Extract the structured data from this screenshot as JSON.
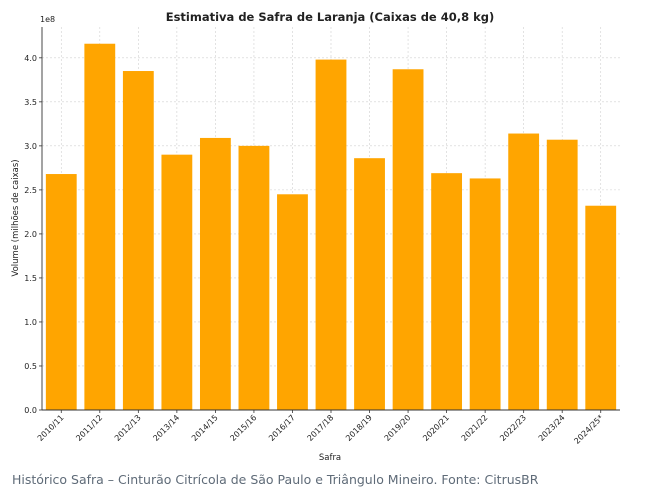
{
  "chart_data": {
    "type": "bar",
    "title": "Estimativa de Safra de Laranja (Caixas de 40,8 kg)",
    "xlabel": "Safra",
    "ylabel": "Volume (milhões de caixas)",
    "y_scale_label": "1e8",
    "categories": [
      "2010/11",
      "2011/12",
      "2012/13",
      "2013/14",
      "2014/15",
      "2015/16",
      "2016/17",
      "2017/18",
      "2018/19",
      "2019/20",
      "2020/21",
      "2021/22",
      "2022/23",
      "2023/24",
      "2024/25*"
    ],
    "values": [
      268000000,
      416000000,
      385000000,
      290000000,
      309000000,
      300000000,
      245000000,
      398000000,
      286000000,
      387000000,
      269000000,
      263000000,
      314000000,
      307000000,
      232000000
    ],
    "ylim": [
      0,
      435000000
    ],
    "yticks": [
      0,
      50000000,
      100000000,
      150000000,
      200000000,
      250000000,
      300000000,
      350000000,
      400000000
    ],
    "ytick_labels": [
      "0.0",
      "0.5",
      "1.0",
      "1.5",
      "2.0",
      "2.5",
      "3.0",
      "3.5",
      "4.0"
    ],
    "grid": true,
    "bar_color": "#ffa500"
  },
  "caption": "Histórico Safra – Cinturão Citrícola de São Paulo e Triângulo Mineiro. Fonte: CitrusBR"
}
